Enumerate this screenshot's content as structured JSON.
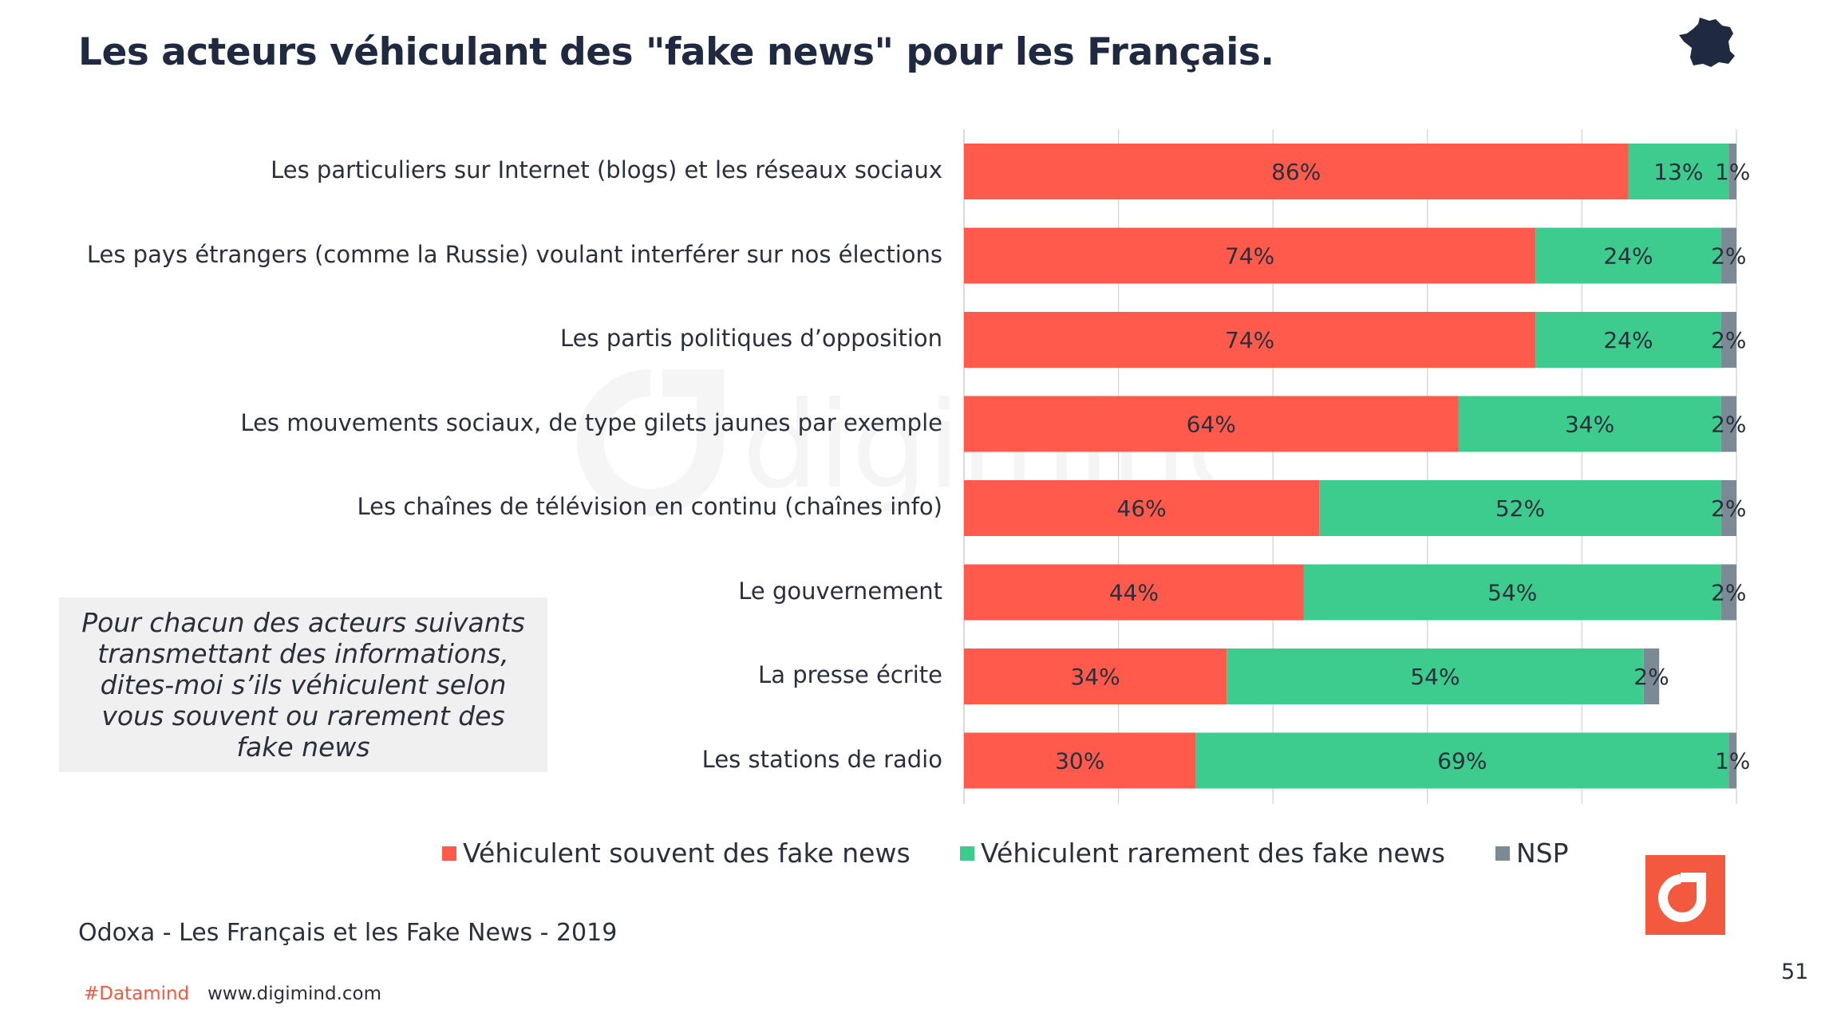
{
  "title": "Les acteurs véhiculant des \"fake news\" pour les Français.",
  "icons": {
    "country": "france-map-icon",
    "brand": "digimind-logo-icon"
  },
  "colors": {
    "souvent": "#ff5a4c",
    "rarement": "#3ecb8e",
    "nsp": "#7c8a96",
    "brand": "#f2593f",
    "title": "#1f2940"
  },
  "question": "Pour chacun des acteurs suivants transmettant des informations, dites-moi s’ils véhiculent selon vous souvent ou rarement des fake news",
  "source": "Odoxa - Les Français et les Fake News  - 2019",
  "footer": {
    "hashtag": "#Datamind",
    "url": "www.digimind.com",
    "page": "51"
  },
  "chart_data": {
    "type": "bar",
    "orientation": "horizontal",
    "stacked": true,
    "categories": [
      "Les particuliers sur Internet (blogs) et les réseaux sociaux",
      "Les pays étrangers (comme la Russie) voulant interférer sur nos élections",
      "Les partis politiques d’opposition",
      "Les mouvements sociaux, de type gilets jaunes par exemple",
      "Les chaînes de télévision en continu (chaînes info)",
      "Le gouvernement",
      "La presse écrite",
      "Les stations de radio"
    ],
    "series": [
      {
        "name": "Véhiculent souvent des fake news",
        "values": [
          86,
          74,
          74,
          64,
          46,
          44,
          34,
          30
        ],
        "color": "#ff5a4c"
      },
      {
        "name": "Véhiculent rarement des fake news",
        "values": [
          13,
          24,
          24,
          34,
          52,
          54,
          54,
          69
        ],
        "color": "#3ecb8e"
      },
      {
        "name": "NSP",
        "values": [
          1,
          2,
          2,
          2,
          2,
          2,
          2,
          1
        ],
        "color": "#7c8a96"
      }
    ],
    "value_suffix": "%",
    "xlim": [
      0,
      100
    ],
    "grid": true,
    "legend_position": "bottom"
  }
}
